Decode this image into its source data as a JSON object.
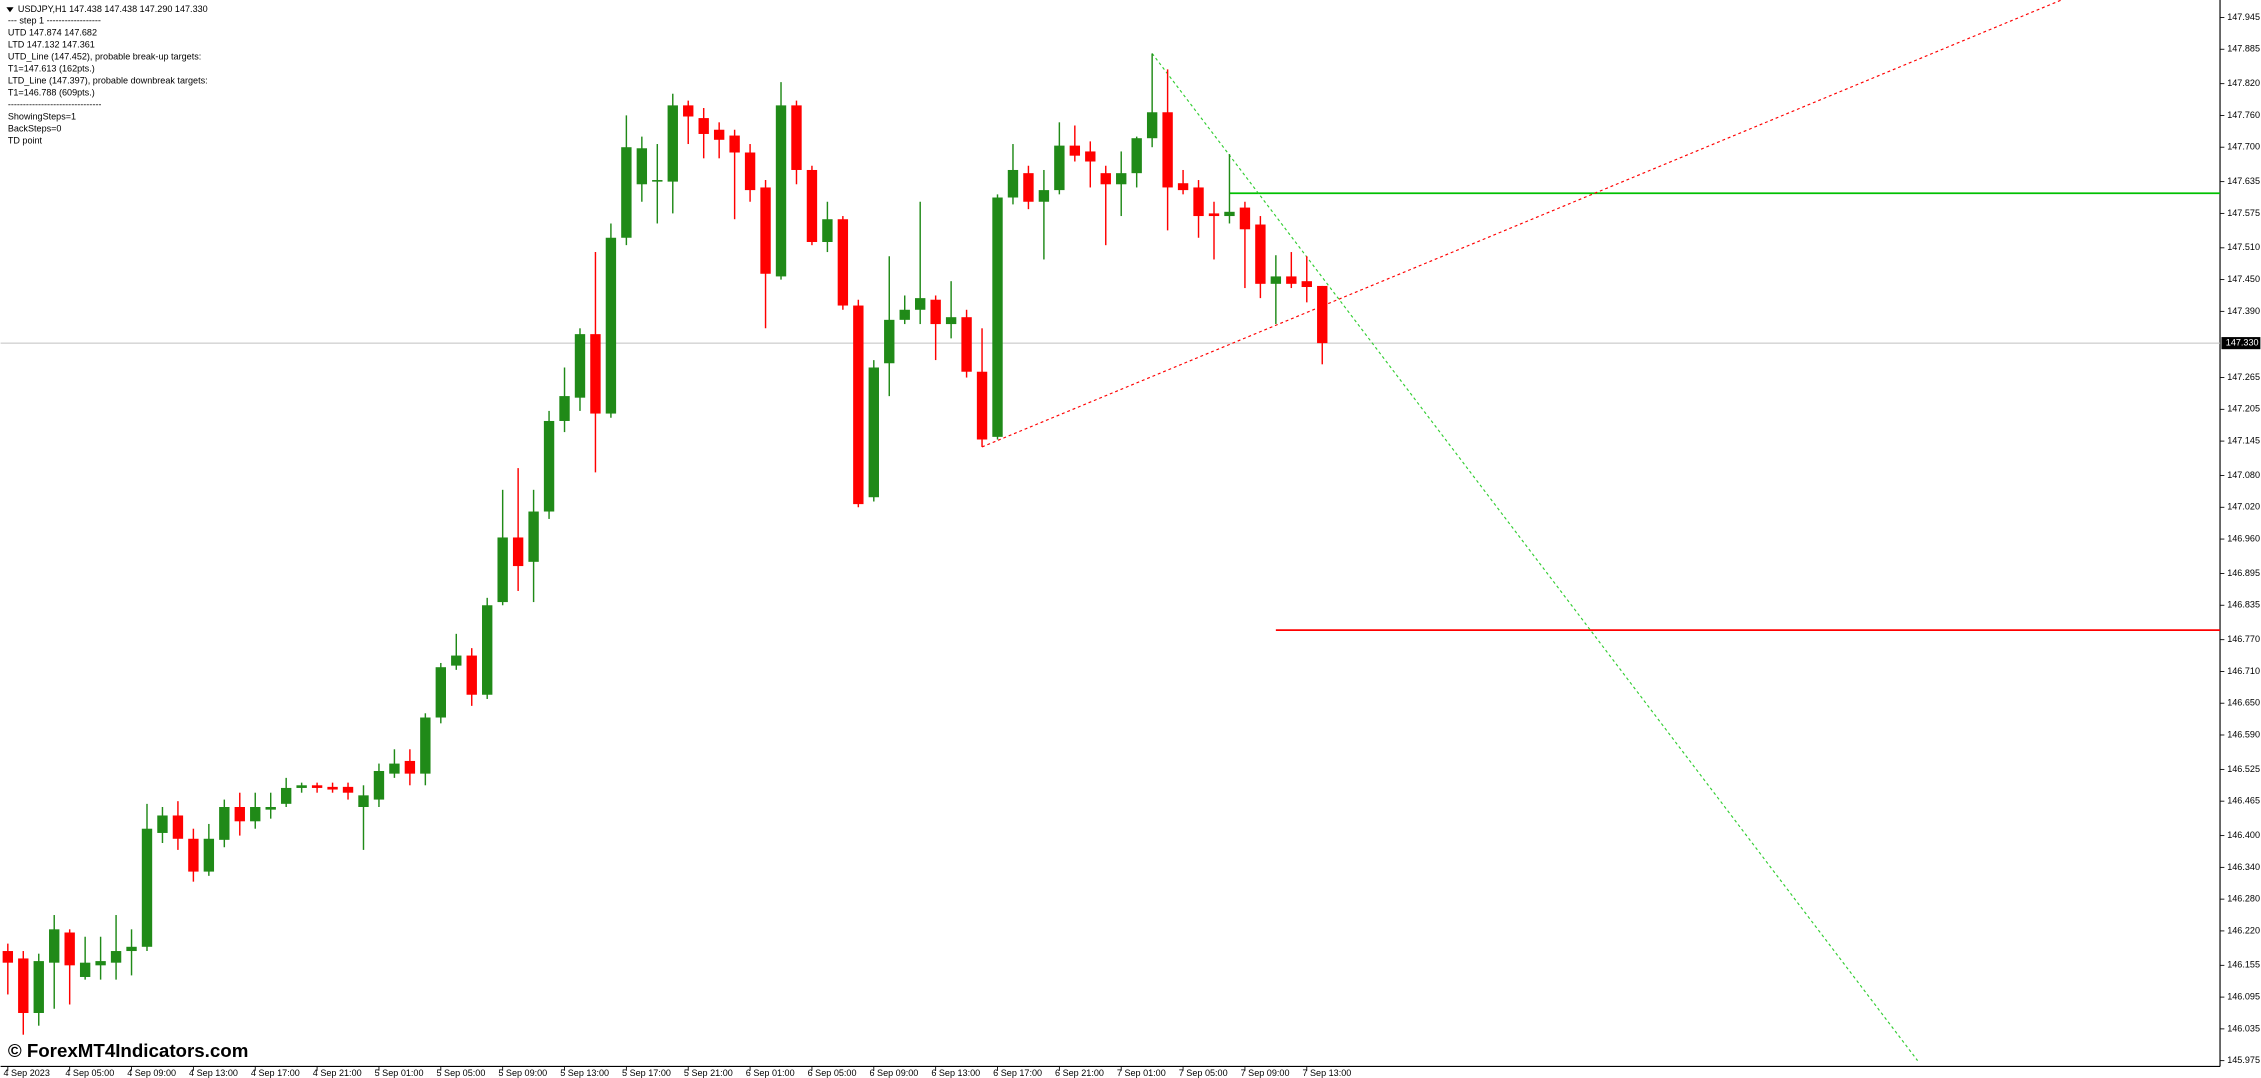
{
  "chart_data": {
    "type": "candlestick",
    "header": [
      "USDJPY,H1  147.438 147.438 147.290 147.330",
      "---   step 1   ------------------",
      "UTD 147.874  147.682",
      "LTD  147.132  147.361",
      "UTD_Line (147.452), probable break-up targets:",
      "T1=147.613 (162pts.)",
      "LTD_Line (147.397), probable downbreak targets:",
      "T1=146.788 (609pts.)",
      "-------------------------------",
      "ShowingSteps=1",
      "BackSteps=0",
      "TD point"
    ],
    "watermark": "© ForexMT4Indicators.com",
    "categories": [
      "4 Sep 2023",
      null,
      null,
      null,
      "4 Sep 05:00",
      null,
      null,
      null,
      "4 Sep 09:00",
      null,
      null,
      null,
      "4 Sep 13:00",
      null,
      null,
      null,
      "4 Sep 17:00",
      null,
      null,
      null,
      "4 Sep 21:00",
      null,
      null,
      null,
      "5 Sep 01:00",
      null,
      null,
      null,
      "5 Sep 05:00",
      null,
      null,
      null,
      "5 Sep 09:00",
      null,
      null,
      null,
      "5 Sep 13:00",
      null,
      null,
      null,
      "5 Sep 17:00",
      null,
      null,
      null,
      "5 Sep 21:00",
      null,
      null,
      null,
      "6 Sep 01:00",
      null,
      null,
      null,
      "6 Sep 05:00",
      null,
      null,
      null,
      "6 Sep 09:00",
      null,
      null,
      null,
      "6 Sep 13:00",
      null,
      null,
      null,
      "6 Sep 17:00",
      null,
      null,
      null,
      "6 Sep 21:00",
      null,
      null,
      null,
      "7 Sep 01:00",
      null,
      null,
      null,
      "7 Sep 05:00",
      null,
      null,
      null,
      "7 Sep 09:00",
      null,
      null,
      null,
      "7 Sep 13:00",
      null
    ],
    "open": [
      146.182,
      146.168,
      146.065,
      146.16,
      146.217,
      146.133,
      146.155,
      146.16,
      146.182,
      146.19,
      146.405,
      146.438,
      146.394,
      146.332,
      146.392,
      146.454,
      146.427,
      146.449,
      146.46,
      146.49,
      146.495,
      146.492,
      146.492,
      146.454,
      146.468,
      146.517,
      146.541,
      146.517,
      146.623,
      146.721,
      146.74,
      146.666,
      146.841,
      146.963,
      146.917,
      147.012,
      147.183,
      147.227,
      147.347,
      147.197,
      147.529,
      147.63,
      147.635,
      147.635,
      147.779,
      147.755,
      147.733,
      147.722,
      147.69,
      147.624,
      147.456,
      147.779,
      147.657,
      147.521,
      147.564,
      147.401,
      147.039,
      147.292,
      147.374,
      147.393,
      147.412,
      147.366,
      147.379,
      147.276,
      147.153,
      147.605,
      147.651,
      147.597,
      147.619,
      147.703,
      147.692,
      147.651,
      147.63,
      147.651,
      147.717,
      147.766,
      147.632,
      147.624,
      147.575,
      147.57,
      147.586,
      147.554,
      147.442,
      147.456,
      147.447,
      147.438
    ],
    "high": [
      146.196,
      146.182,
      146.177,
      146.25,
      146.223,
      146.209,
      146.209,
      146.25,
      146.223,
      146.46,
      146.454,
      146.465,
      146.413,
      146.422,
      146.468,
      146.481,
      146.481,
      146.481,
      146.509,
      146.5,
      146.5,
      146.5,
      146.5,
      146.495,
      146.536,
      146.563,
      146.563,
      146.631,
      146.726,
      146.781,
      146.754,
      146.849,
      147.053,
      147.094,
      147.053,
      147.202,
      147.284,
      147.358,
      147.502,
      147.556,
      147.76,
      147.72,
      147.706,
      147.801,
      147.788,
      147.774,
      147.747,
      147.733,
      147.706,
      147.638,
      147.823,
      147.788,
      147.665,
      147.597,
      147.57,
      147.412,
      147.298,
      147.494,
      147.42,
      147.597,
      147.42,
      147.447,
      147.393,
      147.358,
      147.611,
      147.706,
      147.665,
      147.657,
      147.747,
      147.741,
      147.711,
      147.665,
      147.692,
      147.72,
      147.877,
      147.847,
      147.657,
      147.638,
      147.597,
      147.687,
      147.597,
      147.57,
      147.496,
      147.502,
      147.494,
      147.438
    ],
    "low": [
      146.1,
      146.024,
      146.041,
      146.073,
      146.081,
      146.128,
      146.128,
      146.128,
      146.136,
      146.182,
      146.386,
      146.373,
      146.313,
      146.324,
      146.378,
      146.4,
      146.413,
      146.432,
      146.454,
      146.481,
      146.481,
      146.481,
      146.468,
      146.373,
      146.454,
      146.509,
      146.495,
      146.495,
      146.612,
      146.713,
      146.645,
      146.658,
      146.835,
      146.862,
      146.841,
      146.998,
      147.162,
      147.202,
      147.086,
      147.189,
      147.515,
      147.597,
      147.556,
      147.575,
      147.706,
      147.679,
      147.679,
      147.564,
      147.597,
      147.358,
      147.45,
      147.63,
      147.515,
      147.502,
      147.393,
      147.02,
      147.031,
      147.23,
      147.366,
      147.366,
      147.298,
      147.339,
      147.265,
      147.134,
      147.148,
      147.592,
      147.583,
      147.488,
      147.611,
      147.673,
      147.624,
      147.515,
      147.57,
      147.624,
      147.7,
      147.543,
      147.611,
      147.529,
      147.488,
      147.556,
      147.434,
      147.415,
      147.366,
      147.434,
      147.407,
      147.29
    ],
    "close": [
      146.16,
      146.065,
      146.163,
      146.223,
      146.155,
      146.16,
      146.163,
      146.182,
      146.19,
      146.413,
      146.438,
      146.394,
      146.332,
      146.394,
      146.454,
      146.427,
      146.454,
      146.454,
      146.49,
      146.495,
      146.49,
      146.487,
      146.481,
      146.476,
      146.522,
      146.536,
      146.517,
      146.623,
      146.718,
      146.74,
      146.666,
      146.835,
      146.963,
      146.909,
      147.012,
      147.183,
      147.23,
      147.347,
      147.197,
      147.529,
      147.7,
      147.698,
      147.638,
      147.779,
      147.758,
      147.725,
      147.714,
      147.69,
      147.619,
      147.461,
      147.779,
      147.657,
      147.521,
      147.564,
      147.401,
      147.026,
      147.284,
      147.374,
      147.393,
      147.415,
      147.366,
      147.379,
      147.276,
      147.148,
      147.605,
      147.657,
      147.597,
      147.619,
      147.703,
      147.684,
      147.673,
      147.63,
      147.651,
      147.717,
      147.766,
      147.624,
      147.619,
      147.57,
      147.57,
      147.578,
      147.545,
      147.442,
      147.456,
      147.442,
      147.436,
      147.33
    ],
    "up_color": "#208a18",
    "down_color": "#ff0000",
    "current_price": {
      "value": 147.33,
      "label": "147.330"
    },
    "levels": [
      {
        "value": 147.613,
        "color": "#00c000",
        "from": 79
      },
      {
        "value": 146.788,
        "color": "#ff0000",
        "from": 82
      }
    ],
    "trend_lines": [
      {
        "color": "#ff0000",
        "points": [
          [
            63,
            147.134
          ],
          [
            132.8,
            147.978
          ]
        ]
      },
      {
        "color": "#32cd32",
        "points": [
          [
            74,
            147.877
          ],
          [
            123.5,
            145.975
          ]
        ]
      }
    ],
    "ylim": [
      145.964,
      147.978
    ],
    "yticks": [
      147.945,
      147.885,
      {
        "value": 147.82,
        "label": "147.820"
      },
      {
        "value": 147.76,
        "label": "147.760"
      },
      {
        "value": 147.7,
        "label": "147.700"
      },
      147.635,
      147.575,
      {
        "value": 147.51,
        "label": "147.510"
      },
      {
        "value": 147.45,
        "label": "147.450"
      },
      {
        "value": 147.39,
        "label": "147.390"
      },
      147.265,
      147.205,
      147.145,
      {
        "value": 147.08,
        "label": "147.080"
      },
      {
        "value": 147.02,
        "label": "147.020"
      },
      {
        "value": 146.96,
        "label": "146.960"
      },
      146.895,
      146.835,
      {
        "value": 146.77,
        "label": "146.770"
      },
      {
        "value": 146.71,
        "label": "146.710"
      },
      {
        "value": 146.65,
        "label": "146.650"
      },
      {
        "value": 146.59,
        "label": "146.590"
      },
      146.525,
      146.465,
      {
        "value": 146.4,
        "label": "146.400"
      },
      {
        "value": 146.34,
        "label": "146.340"
      },
      {
        "value": 146.28,
        "label": "146.280"
      },
      {
        "value": 146.22,
        "label": "146.220"
      },
      146.155,
      146.095,
      146.035,
      145.975
    ],
    "grid": false
  }
}
